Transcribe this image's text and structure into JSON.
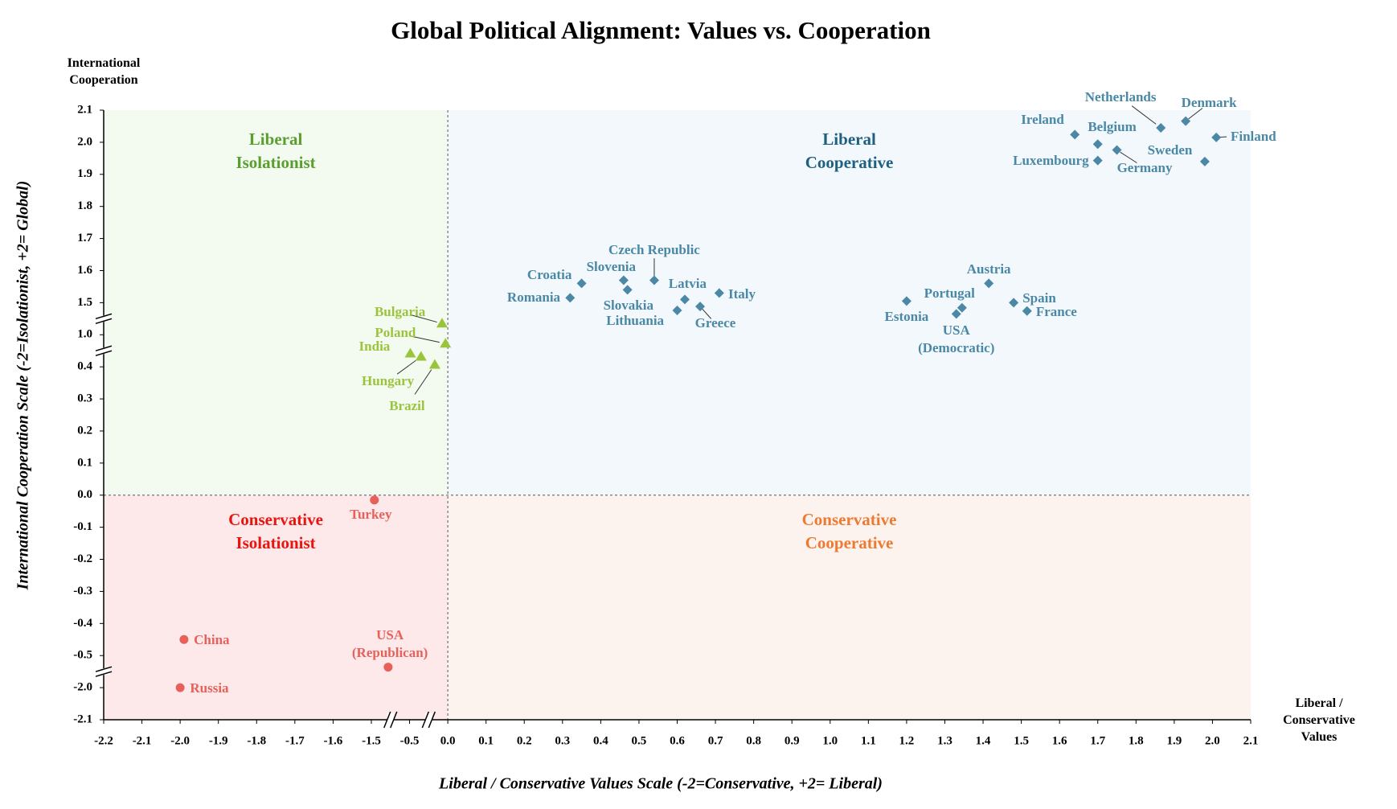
{
  "chart_data": {
    "type": "scatter",
    "title": "Global Political Alignment: Values vs. Cooperation",
    "x_label": "Liberal / Conservative Values Scale (-2=Conservative, +2= Liberal)",
    "y_label": "International Cooperation Scale (-2=Isolationist, +2= Global)",
    "y_corner_label": "International Cooperation",
    "x_corner_label": "Liberal / Conservative Values",
    "xlim": [
      -2.2,
      2.1
    ],
    "ylim": [
      -2.1,
      2.1
    ],
    "xticks": [
      -2.2,
      -2.1,
      {
        "value": -2,
        "label": "-2.0"
      },
      -1.9,
      -1.8,
      -1.7,
      -1.6,
      -1.5,
      -0.5,
      {
        "value": 0,
        "label": "0.0"
      },
      0.1,
      0.2,
      0.3,
      0.4,
      0.5,
      0.6,
      0.7,
      0.8,
      0.9,
      {
        "value": 1,
        "label": "1.0"
      },
      1.1,
      1.2,
      1.3,
      1.4,
      1.5,
      1.6,
      1.7,
      1.8,
      1.9,
      {
        "value": 2,
        "label": "2.0"
      },
      2.1
    ],
    "yticks": [
      -2.1,
      {
        "value": -2,
        "label": "-2.0"
      },
      -0.5,
      -0.4,
      -0.3,
      -0.2,
      -0.1,
      {
        "value": 0,
        "label": "0.0"
      },
      0.1,
      0.2,
      0.3,
      0.4,
      {
        "value": 1,
        "label": "1.0"
      },
      1.5,
      1.6,
      1.7,
      1.8,
      1.9,
      {
        "value": 2,
        "label": "2.0"
      },
      2.1
    ],
    "quadrants": [
      {
        "label": "Liberal Isolationist",
        "color": "#5a9e2f",
        "background": "#f3faf0"
      },
      {
        "label": "Liberal Cooperative",
        "color": "#1f5f80",
        "background": "#f2f8fc"
      },
      {
        "label": "Conservative Isolationist",
        "color": "#e8140f",
        "background": "#fde9e9"
      },
      {
        "label": "Conservative Cooperative",
        "color": "#ec7a32",
        "background": "#fdf3ee"
      }
    ],
    "series": [
      {
        "marker": "diamond",
        "color": "#4a88a6",
        "labels": [
          "Netherlands",
          "Denmark",
          "Finland",
          "Ireland",
          "Belgium",
          "Sweden",
          "Luxembourg",
          "Germany",
          "Croatia",
          "Romania",
          "Slovenia",
          "Czech Republic",
          "Slovakia",
          "Latvia",
          "Italy",
          "Lithuania",
          "Greece",
          "Austria",
          "Portugal",
          "Spain",
          "Estonia",
          "USA (Democratic)",
          "France"
        ],
        "x": [
          1.865,
          1.93,
          2.01,
          1.64,
          1.7,
          1.98,
          1.7,
          1.75,
          0.35,
          0.32,
          0.46,
          0.54,
          0.47,
          0.62,
          0.71,
          0.6,
          0.66,
          1.415,
          1.345,
          1.48,
          1.2,
          1.33,
          1.515
        ],
        "values": [
          2.045,
          2.066,
          2.015,
          2.024,
          1.994,
          1.94,
          1.943,
          1.976,
          1.56,
          1.515,
          1.57,
          1.57,
          1.54,
          1.51,
          1.53,
          1.38,
          1.44,
          1.56,
          1.42,
          1.5,
          1.505,
          1.325,
          1.37
        ]
      },
      {
        "marker": "triangle",
        "color": "#9ac43c",
        "labels": [
          "Bulgaria",
          "Poland",
          "India",
          "Hungary",
          "Brazil"
        ],
        "x": [
          -0.075,
          -0.03,
          -0.49,
          -0.35,
          -0.17
        ],
        "values": [
          1.175,
          0.835,
          0.65,
          0.59,
          0.44
        ]
      },
      {
        "marker": "circle",
        "color": "#e8605a",
        "labels": [
          "Turkey",
          "China",
          "Russia",
          "USA (Republican)"
        ],
        "x": [
          -1.42,
          -1.99,
          -2.0,
          -1.06
        ],
        "values": [
          -0.015,
          -0.45,
          -2.0,
          -1.04
        ]
      }
    ]
  }
}
